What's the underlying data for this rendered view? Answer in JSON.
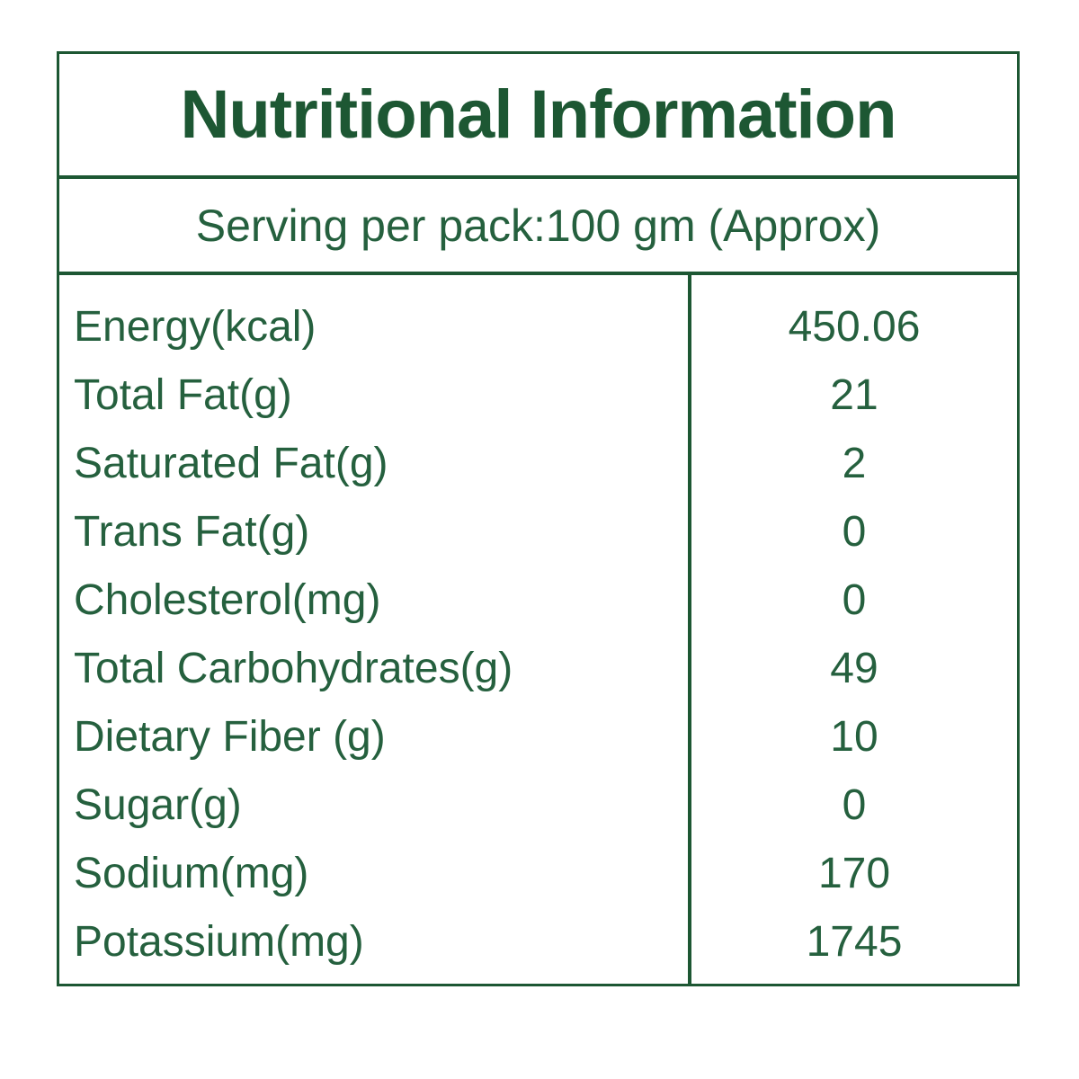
{
  "label": {
    "title": "Nutritional Information",
    "serving": "Serving per pack:100 gm (Approx)"
  },
  "colors": {
    "green_dark": "#1d5733",
    "green_text": "#25603e",
    "background": "#ffffff"
  },
  "table": {
    "rows": [
      {
        "label": "Energy(kcal)",
        "value": "450.06"
      },
      {
        "label": "Total Fat(g)",
        "value": "21"
      },
      {
        "label": "Saturated Fat(g)",
        "value": "2"
      },
      {
        "label": "Trans Fat(g)",
        "value": "0"
      },
      {
        "label": "Cholesterol(mg)",
        "value": "0"
      },
      {
        "label": "Total Carbohydrates(g)",
        "value": "49"
      },
      {
        "label": "Dietary Fiber (g)",
        "value": "10"
      },
      {
        "label": "Sugar(g)",
        "value": "0"
      },
      {
        "label": "Sodium(mg)",
        "value": "170"
      },
      {
        "label": "Potassium(mg)",
        "value": "1745"
      }
    ]
  }
}
